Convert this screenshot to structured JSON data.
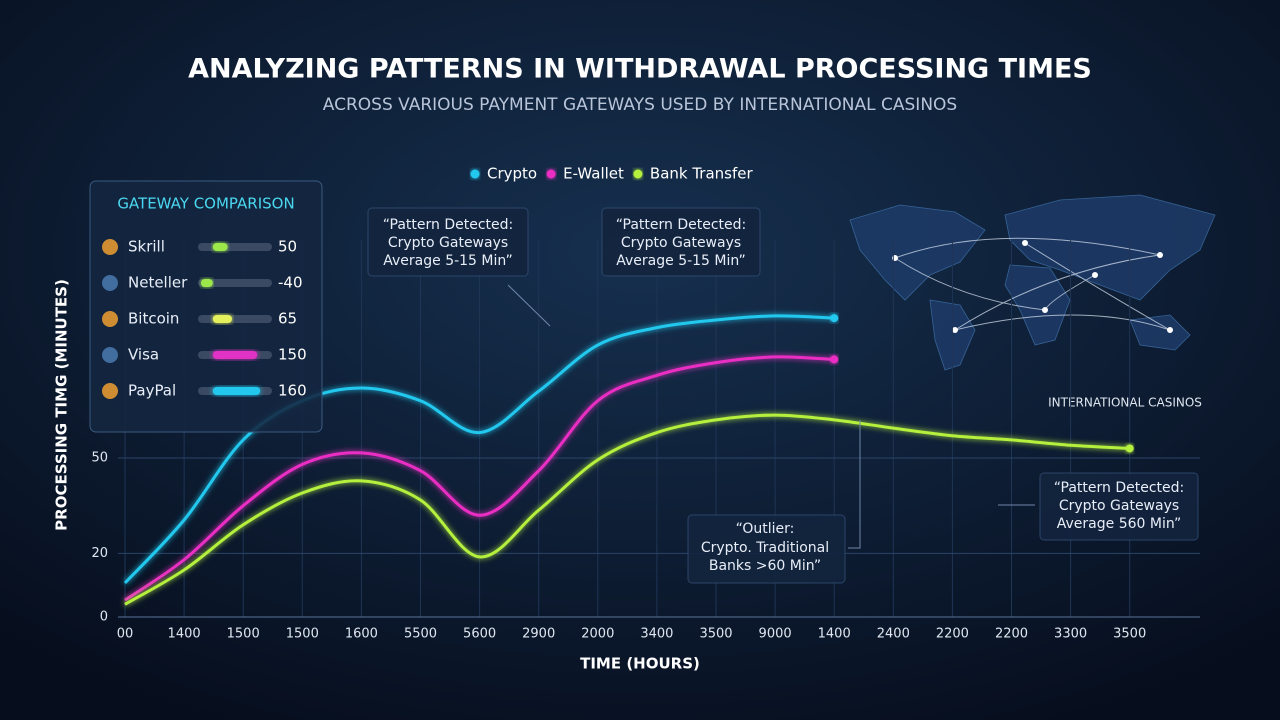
{
  "chart_data": [
    {
      "type": "line",
      "title": "ANALYZING PATTERNS IN WITHDRAWAL PROCESSING TIMES",
      "subtitle": "ACROSS VARIOUS PAYMENT GATEWAYS USED BY INTERNATIONAL CASINOS",
      "x_label": "TIME (HOURS)",
      "y_label": "PROCESSING TIMG (MINUTES)",
      "categories": [
        "00",
        "1400",
        "1500",
        "1500",
        "1600",
        "5500",
        "5600",
        "2900",
        "2000",
        "3400",
        "3500",
        "9000",
        "1400",
        "2400",
        "2200",
        "2200",
        "3300",
        "3500"
      ],
      "series": [
        {
          "name": "Crypto",
          "color": "#22c8ee",
          "values": [
            10.7,
            30.5,
            55.7,
            68,
            72,
            68,
            58,
            71,
            85.5,
            91,
            93.4,
            94.7,
            94,
            null,
            null,
            null,
            null,
            null
          ]
        },
        {
          "name": "E-Wallet",
          "color": "#ea2fc4",
          "values": [
            5.3,
            18,
            35,
            48,
            51.6,
            46,
            32,
            46,
            68,
            76,
            80,
            81.8,
            81,
            null,
            null,
            null,
            null,
            null
          ]
        },
        {
          "name": "Bank Transfer",
          "color": "#b4f03c",
          "values": [
            4,
            14.8,
            29,
            39,
            42.8,
            36.8,
            18.9,
            33.6,
            49.4,
            58,
            62,
            63.5,
            62,
            59.4,
            57,
            55.7,
            54,
            53
          ]
        }
      ],
      "ylim": [
        0,
        100
      ],
      "yticks": [
        0,
        20,
        50
      ],
      "grid": true,
      "legend": "top",
      "annotations": [
        {
          "lines": [
            "“Pattern Detected:",
            "Crypto Gateways",
            "Average 5-15 Min”"
          ]
        },
        {
          "lines": [
            "“Pattern Detected:",
            "Crypto Gateways",
            "Average 5-15 Min”"
          ]
        },
        {
          "lines": [
            "“Pattern Detected:",
            "Crypto Gateways",
            "Average 560 Min”"
          ]
        },
        {
          "lines": [
            "“Outlier:",
            "Crypto. Traditional",
            "Banks >60 Min”"
          ]
        }
      ],
      "map_label": "INTERNATIONAL CASINOS"
    },
    {
      "type": "hbar",
      "title": "GATEWAY COMPARISON",
      "categories": [
        "Skrill",
        "Neteller",
        "Bitcoin",
        "Visa",
        "PayPal"
      ],
      "values": [
        50,
        -40,
        65,
        150,
        160
      ],
      "colors": [
        "#9ce84c",
        "#9ce84c",
        "#e4f05c",
        "#e030c4",
        "#22c8ee"
      ],
      "xlim": [
        -50,
        200
      ]
    }
  ]
}
